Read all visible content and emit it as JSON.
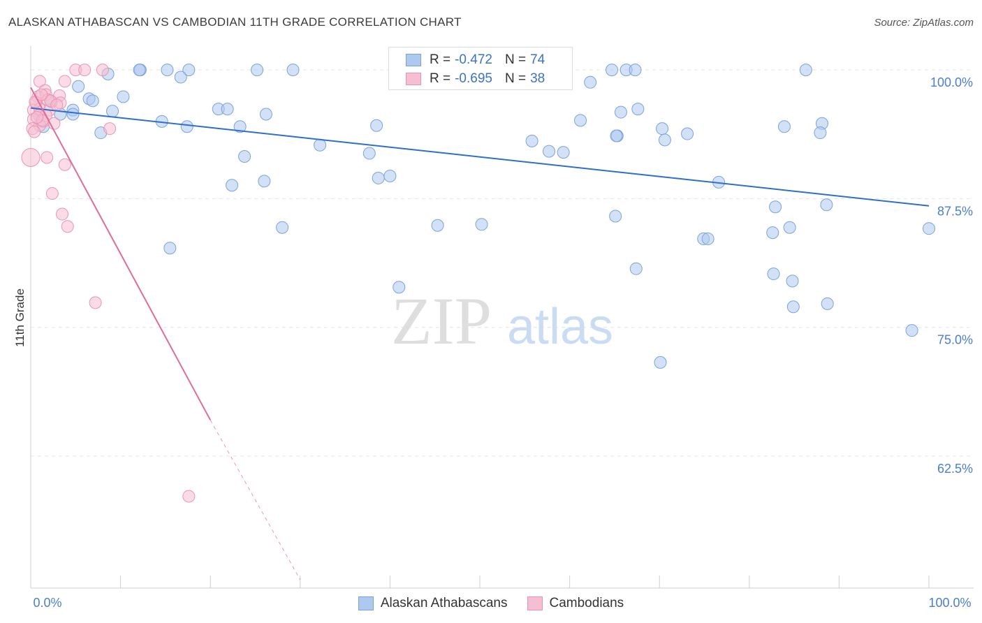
{
  "header": {
    "title": "ALASKAN ATHABASCAN VS CAMBODIAN 11TH GRADE CORRELATION CHART",
    "source": "Source: ZipAtlas.com"
  },
  "legend": {
    "rows": [
      {
        "r_label": "R =",
        "r_value": "-0.472",
        "n_label": "N =",
        "n_value": "74"
      },
      {
        "r_label": "R =",
        "r_value": "-0.695",
        "n_label": "N =",
        "n_value": "38"
      }
    ]
  },
  "watermark": {
    "zip": "ZIP",
    "atlas": "atlas"
  },
  "chart_data": {
    "type": "scatter",
    "ylabel": "11th Grade",
    "x_tick_labels": [
      "0.0%",
      "100.0%"
    ],
    "y_tick_labels": [
      "100.0%",
      "87.5%",
      "75.0%",
      "62.5%"
    ],
    "y_ticks": [
      100.0,
      87.5,
      75.0,
      62.5
    ],
    "xlim": [
      0,
      100
    ],
    "ylim": [
      50.5,
      101.5
    ],
    "grid": true,
    "colors": {
      "blue_fill": "#aec9ef",
      "blue_stroke": "#7aa3db",
      "blue_line": "#2e6fce",
      "pink_fill": "#f6bed1",
      "pink_stroke": "#e895b2",
      "pink_line": "#e06c98",
      "axis_text": "#4a7fd0"
    },
    "series": [
      {
        "name": "Alaskan Athabascans",
        "points": [
          [
            12.2,
            100
          ],
          [
            15.2,
            100
          ],
          [
            12.1,
            100
          ],
          [
            17.6,
            100
          ],
          [
            25.2,
            100
          ],
          [
            29.2,
            100
          ],
          [
            64.7,
            100
          ],
          [
            66.3,
            100
          ],
          [
            67.3,
            100
          ],
          [
            86.3,
            100
          ],
          [
            8.6,
            99.6
          ],
          [
            16.7,
            99.3
          ],
          [
            5.3,
            98.4
          ],
          [
            62.3,
            98.8
          ],
          [
            10.3,
            97.4
          ],
          [
            6.5,
            97.2
          ],
          [
            2.3,
            96.9
          ],
          [
            6.9,
            97.0
          ],
          [
            4.7,
            96.1
          ],
          [
            9.1,
            96.0
          ],
          [
            20.9,
            96.2
          ],
          [
            21.9,
            96.2
          ],
          [
            26.2,
            95.7
          ],
          [
            65.7,
            95.9
          ],
          [
            67.6,
            96.2
          ],
          [
            1.1,
            95.5
          ],
          [
            3.3,
            95.7
          ],
          [
            4.7,
            95.7
          ],
          [
            14.6,
            95.0
          ],
          [
            61.2,
            95.1
          ],
          [
            1.4,
            94.5
          ],
          [
            7.8,
            93.9
          ],
          [
            17.4,
            94.5
          ],
          [
            23.3,
            94.5
          ],
          [
            38.5,
            94.6
          ],
          [
            70.3,
            94.3
          ],
          [
            83.9,
            94.5
          ],
          [
            88.1,
            94.8
          ],
          [
            73.1,
            93.8
          ],
          [
            55.8,
            93.1
          ],
          [
            70.6,
            93.2
          ],
          [
            87.9,
            93.9
          ],
          [
            65.3,
            93.6
          ],
          [
            32.2,
            92.7
          ],
          [
            37.7,
            91.9
          ],
          [
            23.8,
            91.6
          ],
          [
            76.6,
            89.1
          ],
          [
            26.0,
            89.2
          ],
          [
            22.4,
            88.8
          ],
          [
            38.7,
            89.5
          ],
          [
            88.6,
            86.9
          ],
          [
            82.9,
            86.7
          ],
          [
            65.1,
            85.8
          ],
          [
            45.3,
            84.9
          ],
          [
            28.0,
            84.7
          ],
          [
            84.5,
            84.7
          ],
          [
            100,
            84.6
          ],
          [
            74.9,
            83.6
          ],
          [
            75.4,
            83.6
          ],
          [
            15.5,
            82.7
          ],
          [
            82.6,
            84.2
          ],
          [
            67.4,
            80.7
          ],
          [
            82.7,
            80.2
          ],
          [
            41.0,
            78.9
          ],
          [
            88.7,
            77.3
          ],
          [
            84.9,
            77.0
          ],
          [
            98.1,
            74.7
          ],
          [
            70.1,
            71.6
          ],
          [
            59.3,
            92.0
          ],
          [
            57.7,
            92.1
          ],
          [
            50.2,
            85.0
          ],
          [
            40.0,
            89.7
          ],
          [
            84.8,
            79.5
          ],
          [
            65.2,
            93.6
          ]
        ],
        "trend": {
          "x": [
            0,
            100
          ],
          "y": [
            96.3,
            86.8
          ]
        }
      },
      {
        "name": "Cambodians",
        "points": [
          [
            5.0,
            100
          ],
          [
            6.0,
            100
          ],
          [
            8.0,
            100
          ],
          [
            1.0,
            98.9
          ],
          [
            3.8,
            98.9
          ],
          [
            1.6,
            98.0
          ],
          [
            0.8,
            97.4
          ],
          [
            1.7,
            97.6
          ],
          [
            3.2,
            97.5
          ],
          [
            1.9,
            97.1
          ],
          [
            0.6,
            96.8
          ],
          [
            3.3,
            96.8
          ],
          [
            0.3,
            96.1
          ],
          [
            1.0,
            96.2
          ],
          [
            2.1,
            96.1
          ],
          [
            0.9,
            95.6
          ],
          [
            1.7,
            95.6
          ],
          [
            0.3,
            95.2
          ],
          [
            1.4,
            95.0
          ],
          [
            2.6,
            94.8
          ],
          [
            1.0,
            94.6
          ],
          [
            0.2,
            94.3
          ],
          [
            8.8,
            94.3
          ],
          [
            0.4,
            94.0
          ],
          [
            0.0,
            91.5
          ],
          [
            1.8,
            91.5
          ],
          [
            3.8,
            90.8
          ],
          [
            2.4,
            88.0
          ],
          [
            3.5,
            86.0
          ],
          [
            4.1,
            84.8
          ],
          [
            7.2,
            77.4
          ],
          [
            17.6,
            58.6
          ],
          [
            2.2,
            97.0
          ],
          [
            1.3,
            95.1
          ],
          [
            0.5,
            96.9
          ],
          [
            1.2,
            97.6
          ],
          [
            2.9,
            96.6
          ],
          [
            0.7,
            95.4
          ]
        ],
        "trend": {
          "x": [
            0,
            20
          ],
          "y": [
            98.3,
            66.0
          ]
        },
        "trend_dashed": {
          "x": [
            20,
            30
          ],
          "y": [
            66.0,
            50.5
          ]
        }
      }
    ]
  }
}
